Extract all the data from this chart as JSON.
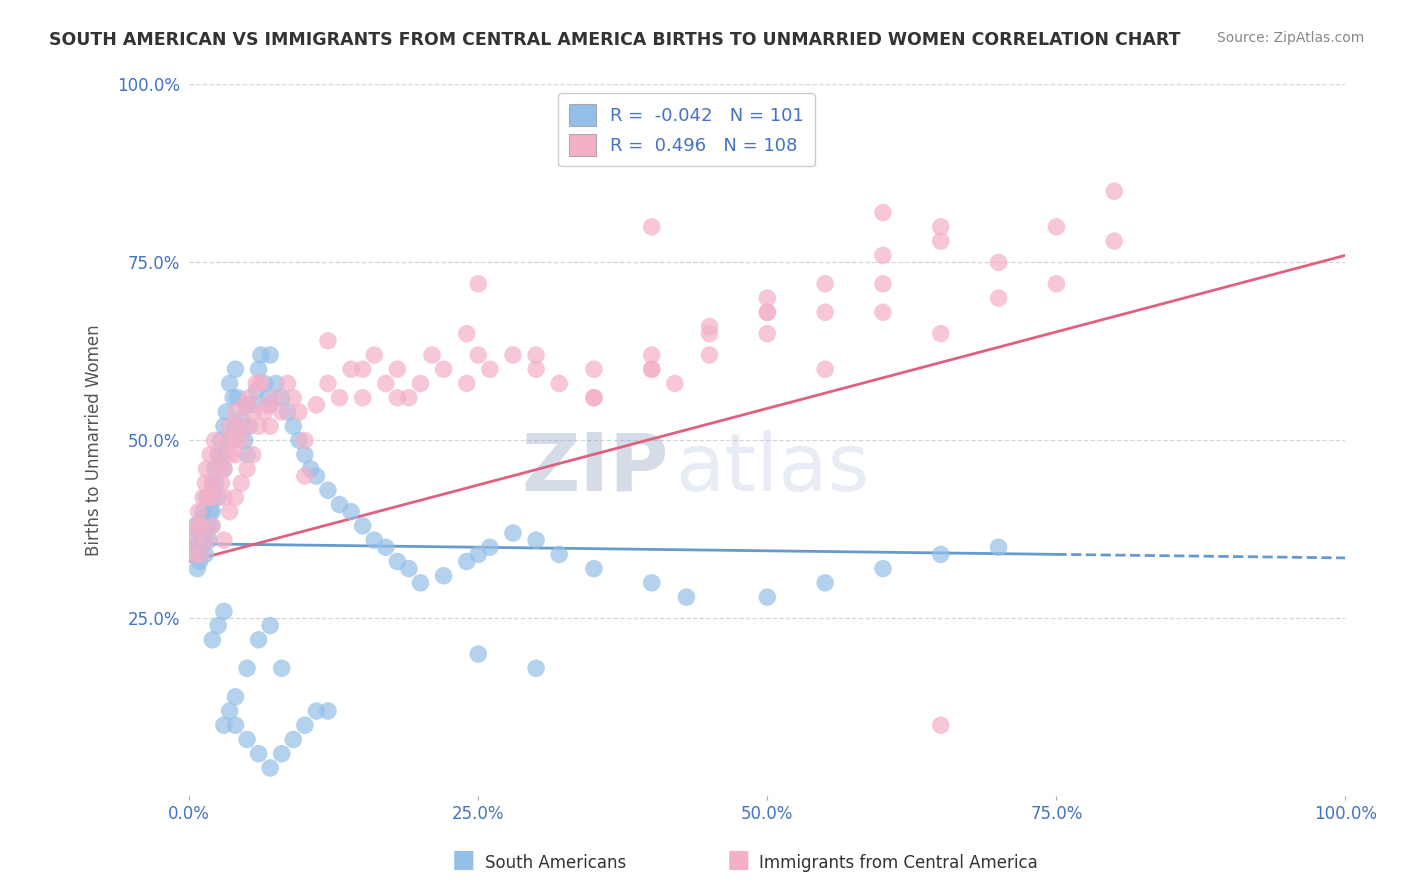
{
  "title": "SOUTH AMERICAN VS IMMIGRANTS FROM CENTRAL AMERICA BIRTHS TO UNMARRIED WOMEN CORRELATION CHART",
  "source": "Source: ZipAtlas.com",
  "ylabel": "Births to Unmarried Women",
  "xlabel": "",
  "xlim": [
    0.0,
    100.0
  ],
  "ylim": [
    0.0,
    100.0
  ],
  "ytick_vals": [
    0,
    25,
    50,
    75,
    100
  ],
  "ytick_labels": [
    "",
    "25.0%",
    "50.0%",
    "75.0%",
    "100.0%"
  ],
  "xtick_vals": [
    0,
    25,
    50,
    75,
    100
  ],
  "xtick_labels": [
    "0.0%",
    "25.0%",
    "50.0%",
    "75.0%",
    "100.0%"
  ],
  "watermark_zip": "ZIP",
  "watermark_atlas": "atlas",
  "blue_trend_start": 35.5,
  "blue_trend_end": 33.5,
  "pink_trend_start": 33.0,
  "pink_trend_end": 76.0,
  "series": [
    {
      "name": "South Americans",
      "R": -0.042,
      "N": 101,
      "color": "#94bfe8",
      "line_color": "#6699cc",
      "line_style": "--",
      "x": [
        0.3,
        0.5,
        0.6,
        0.7,
        0.8,
        0.9,
        1.0,
        1.0,
        1.1,
        1.2,
        1.3,
        1.4,
        1.5,
        1.6,
        1.7,
        1.8,
        1.9,
        2.0,
        2.0,
        2.1,
        2.2,
        2.3,
        2.5,
        2.5,
        2.7,
        2.8,
        3.0,
        3.0,
        3.2,
        3.5,
        3.5,
        3.8,
        4.0,
        4.0,
        4.2,
        4.5,
        4.8,
        5.0,
        5.0,
        5.2,
        5.5,
        5.8,
        6.0,
        6.2,
        6.5,
        6.8,
        7.0,
        7.0,
        7.5,
        8.0,
        8.5,
        9.0,
        9.5,
        10.0,
        10.5,
        11.0,
        12.0,
        13.0,
        14.0,
        15.0,
        16.0,
        17.0,
        18.0,
        19.0,
        20.0,
        22.0,
        24.0,
        25.0,
        26.0,
        28.0,
        30.0,
        32.0,
        35.0,
        40.0,
        43.0,
        50.0,
        55.0,
        60.0,
        65.0,
        70.0,
        3.0,
        3.5,
        4.0,
        5.0,
        6.0,
        7.0,
        8.0,
        2.0,
        2.5,
        3.0,
        4.0,
        5.0,
        6.0,
        7.0,
        8.0,
        9.0,
        10.0,
        11.0,
        12.0,
        25.0,
        30.0
      ],
      "y": [
        36,
        38,
        34,
        32,
        35,
        33,
        37,
        35,
        39,
        40,
        36,
        34,
        42,
        38,
        36,
        40,
        38,
        44,
        40,
        42,
        46,
        44,
        48,
        42,
        50,
        48,
        52,
        46,
        54,
        58,
        50,
        56,
        60,
        52,
        56,
        53,
        50,
        55,
        48,
        52,
        55,
        57,
        60,
        62,
        58,
        56,
        62,
        55,
        58,
        56,
        54,
        52,
        50,
        48,
        46,
        45,
        43,
        41,
        40,
        38,
        36,
        35,
        33,
        32,
        30,
        31,
        33,
        34,
        35,
        37,
        36,
        34,
        32,
        30,
        28,
        28,
        30,
        32,
        34,
        35,
        10,
        12,
        14,
        18,
        22,
        24,
        18,
        22,
        24,
        26,
        10,
        8,
        6,
        4,
        6,
        8,
        10,
        12,
        12,
        20,
        18
      ]
    },
    {
      "name": "Immigrants from Central America",
      "R": 0.496,
      "N": 108,
      "color": "#f4b0c8",
      "line_color": "#e06080",
      "line_style": "-",
      "x": [
        0.3,
        0.5,
        0.7,
        0.8,
        1.0,
        1.2,
        1.4,
        1.5,
        1.6,
        1.8,
        2.0,
        2.0,
        2.2,
        2.5,
        2.5,
        2.8,
        3.0,
        3.0,
        3.2,
        3.5,
        3.5,
        3.8,
        4.0,
        4.0,
        4.2,
        4.5,
        4.8,
        5.0,
        5.2,
        5.5,
        5.8,
        6.0,
        6.2,
        6.5,
        6.8,
        7.0,
        7.5,
        8.0,
        8.5,
        9.0,
        9.5,
        10.0,
        11.0,
        12.0,
        13.0,
        14.0,
        15.0,
        16.0,
        17.0,
        18.0,
        19.0,
        20.0,
        22.0,
        24.0,
        25.0,
        26.0,
        28.0,
        30.0,
        32.0,
        35.0,
        40.0,
        42.0,
        45.0,
        50.0,
        55.0,
        60.0,
        65.0,
        70.0,
        75.0,
        80.0,
        3.0,
        3.5,
        4.0,
        4.5,
        5.0,
        5.5,
        1.0,
        1.5,
        2.0,
        12.0,
        15.0,
        18.0,
        21.0,
        24.0,
        25.0,
        30.0,
        35.0,
        40.0,
        45.0,
        50.0,
        55.0,
        60.0,
        65.0,
        70.0,
        75.0,
        80.0,
        35.0,
        40.0,
        45.0,
        50.0,
        55.0,
        60.0,
        65.0,
        10.0,
        40.0,
        50.0,
        60.0,
        65.0
      ],
      "y": [
        34,
        36,
        38,
        40,
        38,
        42,
        44,
        46,
        42,
        48,
        44,
        42,
        50,
        46,
        48,
        44,
        46,
        42,
        50,
        48,
        52,
        50,
        54,
        48,
        52,
        50,
        55,
        52,
        56,
        54,
        58,
        52,
        58,
        54,
        55,
        52,
        56,
        54,
        58,
        56,
        54,
        50,
        55,
        58,
        56,
        60,
        56,
        62,
        58,
        60,
        56,
        58,
        60,
        58,
        62,
        60,
        62,
        60,
        58,
        56,
        60,
        58,
        62,
        65,
        60,
        68,
        65,
        70,
        72,
        78,
        36,
        40,
        42,
        44,
        46,
        48,
        34,
        36,
        38,
        64,
        60,
        56,
        62,
        65,
        72,
        62,
        60,
        62,
        66,
        70,
        68,
        72,
        78,
        75,
        80,
        85,
        56,
        60,
        65,
        68,
        72,
        76,
        80,
        45,
        80,
        68,
        82,
        10
      ]
    }
  ],
  "background_color": "#ffffff",
  "grid_color": "#cccccc",
  "title_color": "#333333",
  "axis_color": "#4472c4",
  "legend_border_color": "#cccccc"
}
